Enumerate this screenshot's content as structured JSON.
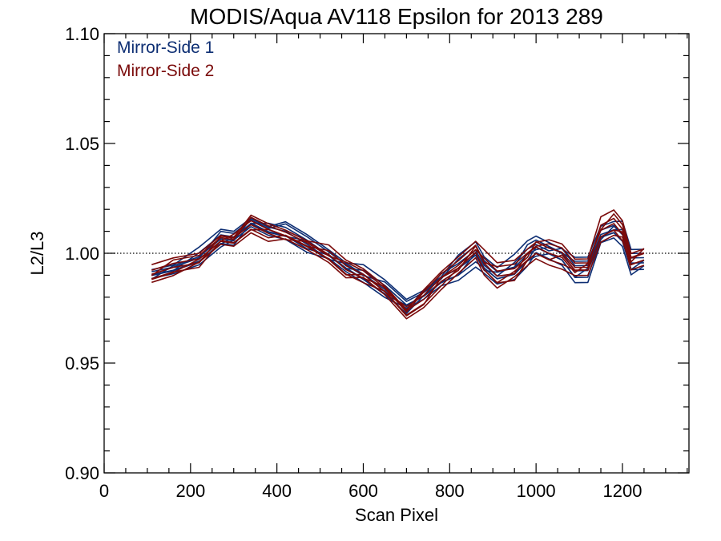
{
  "chart_data": {
    "type": "line",
    "title": "MODIS/Aqua AV118 Epsilon for 2013 289",
    "xlabel": "Scan Pixel",
    "ylabel": "L2/L3",
    "xlim": [
      0,
      1354
    ],
    "ylim": [
      0.9,
      1.1
    ],
    "x_ticks": [
      0,
      200,
      400,
      600,
      800,
      1000,
      1200
    ],
    "x_tick_labels": [
      "0",
      "200",
      "400",
      "600",
      "800",
      "1000",
      "1200"
    ],
    "y_ticks": [
      0.9,
      0.95,
      1.0,
      1.05,
      1.1
    ],
    "y_tick_labels": [
      "0.90",
      "0.95",
      "1.00",
      "1.05",
      "1.10"
    ],
    "reference_line": {
      "y": 1.0,
      "style": "dotted"
    },
    "legend_position": "top-left",
    "series_colors": {
      "Mirror-Side 1": "#0d2e73",
      "Mirror-Side 2": "#7a0a0a"
    },
    "series": [
      {
        "name": "Mirror-Side 1",
        "x": [
          110,
          160,
          220,
          270,
          300,
          340,
          380,
          420,
          470,
          520,
          560,
          600,
          650,
          700,
          740,
          780,
          820,
          860,
          880,
          910,
          950,
          980,
          1000,
          1030,
          1060,
          1090,
          1120,
          1150,
          1180,
          1200,
          1220,
          1250
        ],
        "y": [
          0.99,
          0.993,
          0.998,
          1.007,
          1.007,
          1.014,
          1.011,
          1.01,
          1.005,
          0.999,
          0.994,
          0.99,
          0.984,
          0.976,
          0.981,
          0.988,
          0.993,
          1.0,
          0.994,
          0.99,
          0.993,
          1.0,
          1.003,
          1.001,
          0.999,
          0.992,
          0.993,
          1.008,
          1.011,
          1.008,
          0.996,
          0.997
        ]
      },
      {
        "name": "Mirror-Side 2",
        "x": [
          110,
          160,
          220,
          270,
          300,
          340,
          380,
          420,
          470,
          520,
          560,
          600,
          650,
          700,
          740,
          780,
          820,
          860,
          880,
          910,
          950,
          980,
          1000,
          1030,
          1060,
          1090,
          1120,
          1150,
          1180,
          1200,
          1220,
          1250
        ],
        "y": [
          0.99,
          0.994,
          0.997,
          1.006,
          1.006,
          1.013,
          1.01,
          1.008,
          1.004,
          0.999,
          0.993,
          0.99,
          0.983,
          0.973,
          0.979,
          0.988,
          0.994,
          1.002,
          0.995,
          0.99,
          0.992,
          0.998,
          1.002,
          1.0,
          0.999,
          0.993,
          0.994,
          1.01,
          1.014,
          1.01,
          0.996,
          0.999
        ]
      }
    ]
  }
}
